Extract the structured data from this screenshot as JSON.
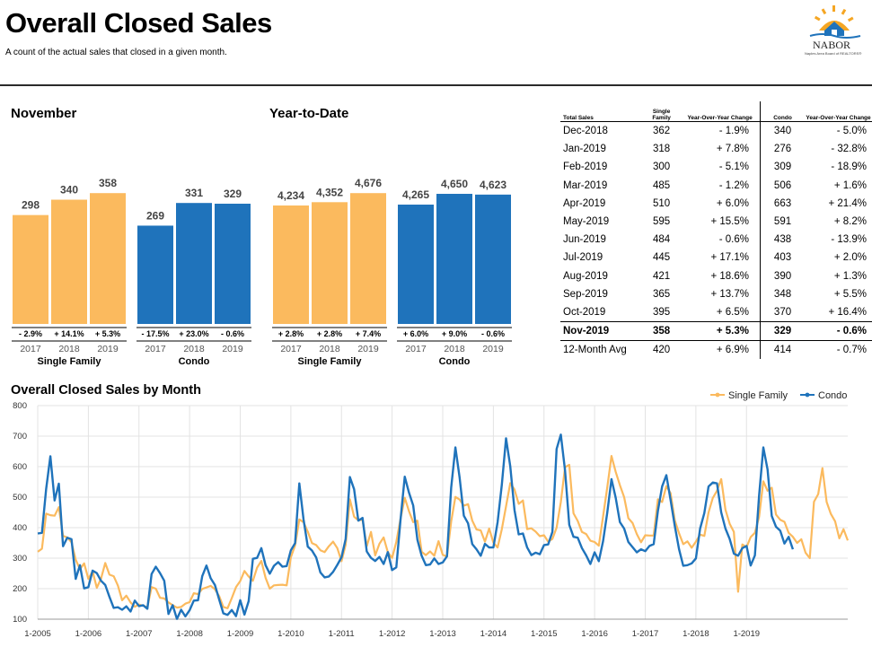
{
  "header": {
    "title": "Overall Closed Sales",
    "subtitle": "A count of the actual sales that closed in a given month.",
    "logo_text": "NABOR",
    "logo_subtext": "Naples Area Board of REALTORS®"
  },
  "colors": {
    "single_family": "#fbba5e",
    "condo": "#1f73bb"
  },
  "chart_data": [
    {
      "type": "bar",
      "title": "November",
      "categories": [
        "2017",
        "2018",
        "2019"
      ],
      "groups": [
        {
          "name": "Single Family",
          "values": [
            298,
            340,
            358
          ],
          "labels": [
            "298",
            "340",
            "358"
          ],
          "changes": [
            "- 2.9%",
            "+ 14.1%",
            "+ 5.3%"
          ]
        },
        {
          "name": "Condo",
          "values": [
            269,
            331,
            329
          ],
          "labels": [
            "269",
            "331",
            "329"
          ],
          "changes": [
            "- 17.5%",
            "+ 23.0%",
            "- 0.6%"
          ]
        }
      ]
    },
    {
      "type": "bar",
      "title": "Year-to-Date",
      "categories": [
        "2017",
        "2018",
        "2019"
      ],
      "groups": [
        {
          "name": "Single Family",
          "values": [
            4234,
            4352,
            4676
          ],
          "labels": [
            "4,234",
            "4,352",
            "4,676"
          ],
          "changes": [
            "+ 2.8%",
            "+ 2.8%",
            "+ 7.4%"
          ]
        },
        {
          "name": "Condo",
          "values": [
            4265,
            4650,
            4623
          ],
          "labels": [
            "4,265",
            "4,650",
            "4,623"
          ],
          "changes": [
            "+ 6.0%",
            "+ 9.0%",
            "- 0.6%"
          ]
        }
      ]
    },
    {
      "type": "table",
      "headers": [
        "Total Sales",
        "Single Family",
        "Year-Over-Year Change",
        "Condo",
        "Year-Over-Year Change"
      ],
      "rows": [
        [
          "Dec-2018",
          "362",
          "- 1.9%",
          "340",
          "- 5.0%"
        ],
        [
          "Jan-2019",
          "318",
          "+ 7.8%",
          "276",
          "- 32.8%"
        ],
        [
          "Feb-2019",
          "300",
          "- 5.1%",
          "309",
          "- 18.9%"
        ],
        [
          "Mar-2019",
          "485",
          "- 1.2%",
          "506",
          "+ 1.6%"
        ],
        [
          "Apr-2019",
          "510",
          "+ 6.0%",
          "663",
          "+ 21.4%"
        ],
        [
          "May-2019",
          "595",
          "+ 15.5%",
          "591",
          "+ 8.2%"
        ],
        [
          "Jun-2019",
          "484",
          "- 0.6%",
          "438",
          "- 13.9%"
        ],
        [
          "Jul-2019",
          "445",
          "+ 17.1%",
          "403",
          "+ 2.0%"
        ],
        [
          "Aug-2019",
          "421",
          "+ 18.6%",
          "390",
          "+ 1.3%"
        ],
        [
          "Sep-2019",
          "365",
          "+ 13.7%",
          "348",
          "+ 5.5%"
        ],
        [
          "Oct-2019",
          "395",
          "+ 6.5%",
          "370",
          "+ 16.4%"
        ],
        [
          "Nov-2019",
          "358",
          "+ 5.3%",
          "329",
          "- 0.6%"
        ]
      ],
      "footer": [
        "12-Month Avg",
        "420",
        "+ 6.9%",
        "414",
        "- 0.7%"
      ]
    },
    {
      "type": "line",
      "title": "Overall Closed Sales by Month",
      "x_ticks": [
        "1-2005",
        "1-2006",
        "1-2007",
        "1-2008",
        "1-2009",
        "1-2010",
        "1-2011",
        "1-2012",
        "1-2013",
        "1-2014",
        "1-2015",
        "1-2016",
        "1-2017",
        "1-2018",
        "1-2019"
      ],
      "y_ticks": [
        "100",
        "200",
        "300",
        "400",
        "500",
        "600",
        "700",
        "800"
      ],
      "ylim": [
        100,
        800
      ],
      "x_start": "1-2005",
      "x_end": "11-2019",
      "legend_position": "top-right",
      "grid": true,
      "series": [
        {
          "name": "Single Family",
          "values": [
            321,
            331,
            446,
            441,
            439,
            467,
            373,
            368,
            352,
            295,
            264,
            283,
            232,
            257,
            203,
            233,
            284,
            246,
            241,
            210,
            162,
            177,
            155,
            141,
            148,
            144,
            139,
            205,
            200,
            170,
            168,
            155,
            146,
            138,
            140,
            151,
            156,
            185,
            182,
            199,
            204,
            209,
            198,
            176,
            140,
            136,
            169,
            205,
            225,
            258,
            240,
            226,
            269,
            291,
            236,
            200,
            211,
            212,
            213,
            211,
            303,
            342,
            427,
            418,
            387,
            349,
            343,
            326,
            320,
            339,
            354,
            333,
            290,
            344,
            493,
            436,
            424,
            426,
            339,
            386,
            309,
            347,
            368,
            319,
            301,
            353,
            429,
            498,
            454,
            418,
            423,
            321,
            310,
            322,
            308,
            356,
            311,
            305,
            420,
            501,
            492,
            472,
            477,
            423,
            394,
            391,
            354,
            397,
            351,
            335,
            395,
            470,
            546,
            525,
            478,
            489,
            395,
            398,
            387,
            372,
            375,
            354,
            363,
            400,
            484,
            598,
            606,
            447,
            422,
            386,
            379,
            357,
            353,
            341,
            436,
            532,
            635,
            583,
            539,
            500,
            431,
            415,
            379,
            352,
            375,
            374,
            374,
            493,
            484,
            536,
            513,
            424,
            382,
            346,
            355,
            334,
            354,
            377,
            373,
            450,
            497,
            521,
            559,
            459,
            413,
            386,
            190,
            345,
            336,
            369,
            383,
            436,
            552,
            521,
            531,
            443,
            426,
            419,
            383,
            370,
            350,
            362,
            318,
            300,
            485,
            510,
            595,
            484,
            445,
            421,
            365,
            395,
            358
          ]
        },
        {
          "name": "Condo",
          "values": [
            381,
            383,
            527,
            634,
            489,
            544,
            339,
            367,
            362,
            232,
            277,
            201,
            205,
            259,
            251,
            226,
            212,
            173,
            137,
            139,
            131,
            142,
            125,
            161,
            143,
            146,
            134,
            248,
            272,
            251,
            226,
            117,
            146,
            101,
            131,
            109,
            129,
            161,
            162,
            241,
            276,
            234,
            212,
            165,
            119,
            114,
            130,
            110,
            162,
            115,
            159,
            298,
            301,
            333,
            277,
            249,
            275,
            287,
            272,
            274,
            326,
            349,
            545,
            427,
            338,
            325,
            302,
            253,
            237,
            240,
            255,
            278,
            303,
            363,
            566,
            526,
            423,
            432,
            322,
            301,
            291,
            304,
            281,
            320,
            261,
            270,
            426,
            567,
            515,
            473,
            360,
            308,
            277,
            279,
            299,
            281,
            286,
            306,
            531,
            663,
            564,
            439,
            414,
            346,
            329,
            308,
            347,
            335,
            335,
            418,
            541,
            693,
            601,
            458,
            378,
            381,
            335,
            310,
            318,
            313,
            343,
            345,
            386,
            658,
            705,
            587,
            409,
            370,
            367,
            333,
            309,
            281,
            319,
            290,
            355,
            449,
            559,
            498,
            418,
            397,
            353,
            336,
            319,
            329,
            323,
            340,
            346,
            455,
            535,
            572,
            491,
            406,
            330,
            275,
            277,
            283,
            299,
            397,
            448,
            535,
            548,
            545,
            450,
            397,
            363,
            315,
            308,
            333,
            340,
            276,
            309,
            506,
            663,
            591,
            438,
            403,
            390,
            348,
            370,
            329
          ]
        }
      ]
    }
  ]
}
